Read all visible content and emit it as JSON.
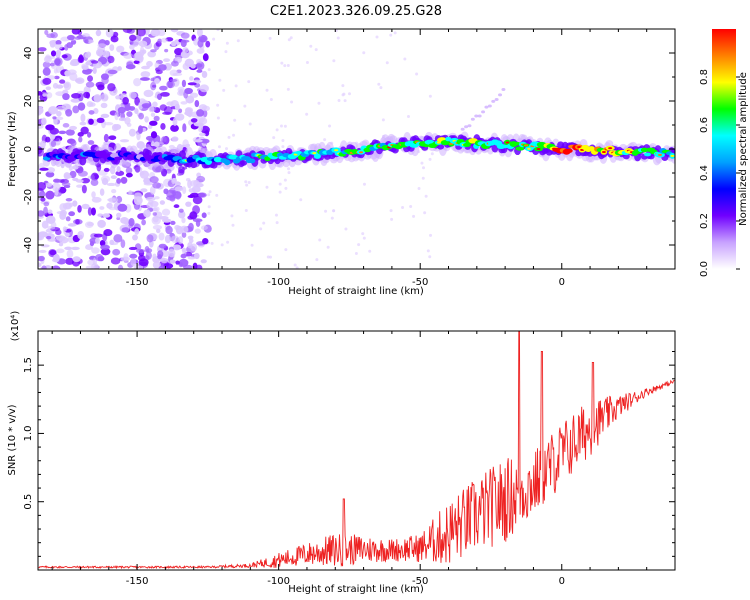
{
  "title": "C2E1.2023.326.09.25.G28",
  "chart_data": [
    {
      "type": "heatmap",
      "xlabel": "Height of straight line (km)",
      "ylabel": "Frequency (Hz)",
      "xlim": [
        -185,
        40
      ],
      "ylim": [
        -50,
        50
      ],
      "x_ticks": [
        -150,
        -100,
        -50,
        0
      ],
      "x_tick_labels": [
        "-150",
        "-100",
        "-50",
        "0"
      ],
      "y_ticks": [
        40,
        20,
        0,
        -20,
        -40
      ],
      "y_tick_labels": [
        "40",
        "20",
        "0",
        "-20",
        "-40"
      ],
      "colorbar": {
        "label": "Normalized spectral amplitude",
        "range": [
          0,
          1
        ],
        "ticks": [
          0.0,
          0.2,
          0.4,
          0.6,
          0.8
        ],
        "tick_labels": [
          "0.0",
          "0.2",
          "0.4",
          "0.6",
          "0.8"
        ],
        "colors": [
          "#ffffff",
          "#c8a2ff",
          "#7000ff",
          "#0000ff",
          "#00a0ff",
          "#00ffff",
          "#00ff00",
          "#ffff00",
          "#ff8000",
          "#ff0000"
        ]
      },
      "ridge": {
        "x": [
          -180,
          -150,
          -125,
          -100,
          -75,
          -55,
          -40,
          -25,
          -10,
          0,
          20,
          40
        ],
        "frequency": [
          -3,
          -3,
          -5,
          -3,
          -1,
          2,
          3,
          2,
          1,
          0,
          -1,
          -2
        ],
        "amplitude": [
          0.35,
          0.25,
          0.45,
          0.55,
          0.55,
          0.6,
          0.6,
          0.65,
          0.6,
          0.95,
          0.7,
          0.55
        ]
      },
      "noise_region": {
        "x": [
          -185,
          -125
        ],
        "frequency": [
          -50,
          50
        ]
      },
      "grid": false
    },
    {
      "type": "line",
      "xlabel": "Height of straight line (km)",
      "ylabel": "SNR (10 * v/v)",
      "y_multiplier": "(x10⁴)",
      "xlim": [
        -185,
        40
      ],
      "ylim": [
        0,
        1.75
      ],
      "x_ticks": [
        -150,
        -100,
        -50,
        0
      ],
      "x_tick_labels": [
        "-150",
        "-100",
        "-50",
        "0"
      ],
      "y_ticks": [
        0.5,
        1.0,
        1.5
      ],
      "y_tick_labels": [
        "0.5",
        "1.0",
        "1.5"
      ],
      "color": "#ff0000",
      "envelope": {
        "x": [
          -185,
          -150,
          -125,
          -110,
          -100,
          -90,
          -80,
          -70,
          -60,
          -50,
          -40,
          -30,
          -20,
          -10,
          0,
          10,
          20,
          30,
          40
        ],
        "base": [
          0.02,
          0.02,
          0.02,
          0.03,
          0.06,
          0.1,
          0.12,
          0.13,
          0.13,
          0.14,
          0.22,
          0.35,
          0.45,
          0.58,
          0.8,
          1.0,
          1.18,
          1.3,
          1.38
        ],
        "spread": [
          0.01,
          0.01,
          0.01,
          0.02,
          0.08,
          0.12,
          0.18,
          0.15,
          0.12,
          0.15,
          0.35,
          0.4,
          0.45,
          0.35,
          0.35,
          0.3,
          0.12,
          0.04,
          0.02
        ]
      },
      "peaks": [
        {
          "x": -77,
          "y": 0.52
        },
        {
          "x": -15,
          "y": 1.75
        },
        {
          "x": -7,
          "y": 1.6
        },
        {
          "x": 11,
          "y": 1.52
        }
      ],
      "grid": false
    }
  ]
}
